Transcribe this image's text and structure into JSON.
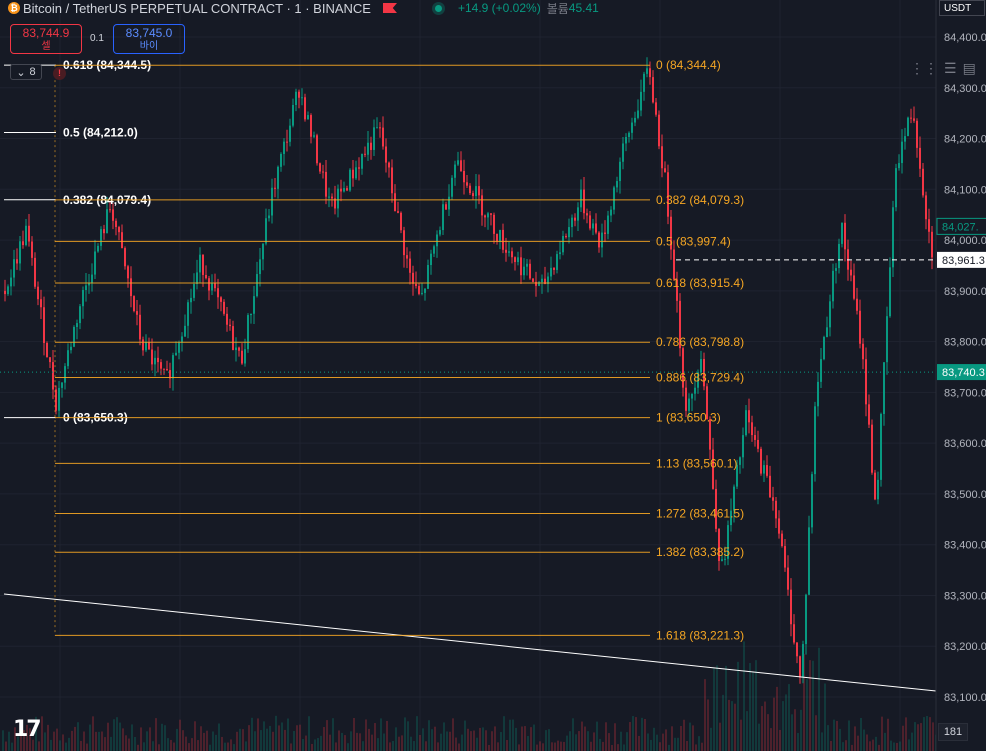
{
  "header": {
    "title": "Bitcoin / TetherUS PERPETUAL CONTRACT · 1 · BINANCE",
    "change": "+14.9 (+0.02%)",
    "volume_label": "볼륨",
    "volume_value": "45.41",
    "coin_icon": "bitcoin-icon"
  },
  "trade": {
    "sell_price": "83,744.9",
    "sell_label": "셀",
    "spread": "0.1",
    "buy_price": "83,745.0",
    "buy_label": "바이",
    "collapse_count": "8"
  },
  "axis": {
    "currency": "USDT",
    "min": 83050,
    "max": 84450,
    "ticks": [
      "84,400.0",
      "84,300.0",
      "84,200.0",
      "84,100.0",
      "84,000.0",
      "83,900.0",
      "83,800.0",
      "83,700.0",
      "83,600.0",
      "83,500.0",
      "83,400.0",
      "83,300.0",
      "83,200.0",
      "83,100.0"
    ],
    "tick_values": [
      84400,
      84300,
      84200,
      84100,
      84000,
      83900,
      83800,
      83700,
      83600,
      83500,
      83400,
      83300,
      83200,
      83100
    ],
    "badges": [
      {
        "value": 84027,
        "label": "84,027.",
        "color": "#089981"
      },
      {
        "value": 83961,
        "label": "83,961.3",
        "color": "#ffffff"
      },
      {
        "value": 83740,
        "label": "83,740.3",
        "color": "#089981"
      }
    ]
  },
  "fib_left": [
    {
      "label": "0.618 (84,344.5)",
      "value": 84344.5
    },
    {
      "label": "0.5 (84,212.0)",
      "value": 84212.0
    },
    {
      "label": "0.382 (84,079.4)",
      "value": 84079.4
    },
    {
      "label": "0 (83,650.3)",
      "value": 83650.3
    }
  ],
  "fib_right": [
    {
      "label": "0 (84,344.4)",
      "value": 84344.4
    },
    {
      "label": "0.382 (84,079.3)",
      "value": 84079.3
    },
    {
      "label": "0.5 (83,997.4)",
      "value": 83997.4
    },
    {
      "label": "0.618 (83,915.4)",
      "value": 83915.4
    },
    {
      "label": "0.786 (83,798.8)",
      "value": 83798.8
    },
    {
      "label": "0.886 (83,729.4)",
      "value": 83729.4
    },
    {
      "label": "1 (83,650.3)",
      "value": 83650.3
    },
    {
      "label": "1.13 (83,560.1)",
      "value": 83560.1
    },
    {
      "label": "1.272 (83,461.5)",
      "value": 83461.5
    },
    {
      "label": "1.382 (83,385.2)",
      "value": 83385.2
    },
    {
      "label": "1.618 (83,221.3)",
      "value": 83221.3
    }
  ],
  "volume_badge": "181",
  "colors": {
    "background": "#161a25",
    "up": "#089981",
    "down": "#f23645",
    "fib": "#f5a623",
    "grid": "#1f2330"
  },
  "logo": "TV"
}
